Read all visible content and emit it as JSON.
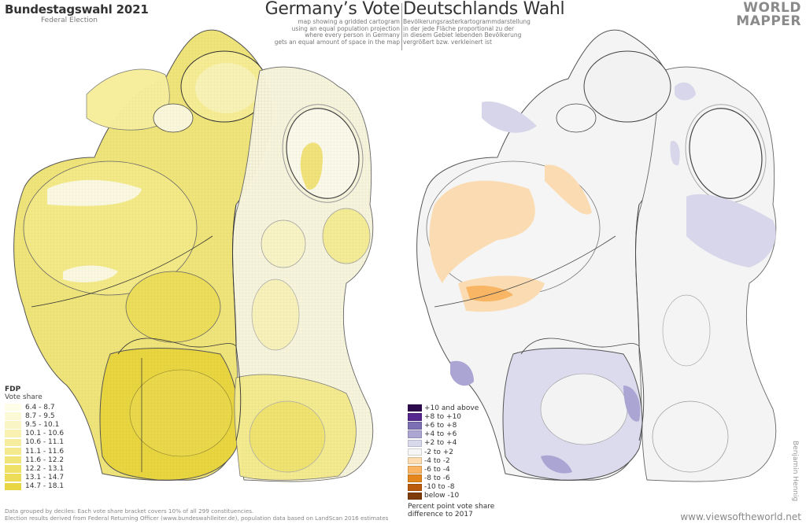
{
  "header": {
    "title": "Bundestagswahl 2021",
    "subtitle": "Federal Election",
    "title_en": "Germany’s Vote",
    "title_de": "Deutschlands Wahl",
    "description_en": [
      "map showing a gridded cartogram",
      "using an equal population projection",
      "where every person in Germany",
      "gets an equal amount of space in the map"
    ],
    "description_de": [
      "Bevölkerungsrasterkartogrammdarstellung",
      "in der jede Fläche proportional zu der",
      "in diesem Gebiet lebenden Bevölkerung",
      "vergrößert bzw. verkleinert ist"
    ],
    "logo_line1": "WORLD",
    "logo_line2": "MAPPER"
  },
  "left_map": {
    "party": "FDP",
    "measure": "Vote share",
    "legend": [
      {
        "label": "6.4 - 8.7",
        "color": "#fefde8"
      },
      {
        "label": "8.7 - 9.5",
        "color": "#fcf9d6"
      },
      {
        "label": "9.5 - 10.1",
        "color": "#faf5c4"
      },
      {
        "label": "10.1 - 10.6",
        "color": "#f8f1b2"
      },
      {
        "label": "10.6 - 11.1",
        "color": "#f6ed9e"
      },
      {
        "label": "11.1 - 11.6",
        "color": "#f4e98c"
      },
      {
        "label": "11.6 - 12.2",
        "color": "#f1e57a"
      },
      {
        "label": "12.2 - 13.1",
        "color": "#efe168"
      },
      {
        "label": "13.1 - 14.7",
        "color": "#ecdc58"
      },
      {
        "label": "14.7 - 18.1",
        "color": "#e9d645"
      }
    ]
  },
  "right_map": {
    "legend": [
      {
        "label": "+10 and above",
        "color": "#2d0a4e"
      },
      {
        "label": "+8 to +10",
        "color": "#55278f"
      },
      {
        "label": "+6 to +8",
        "color": "#7d6fb3"
      },
      {
        "label": "+4 to +6",
        "color": "#aba6d2"
      },
      {
        "label": "+2 to +4",
        "color": "#d9d9ec"
      },
      {
        "label": "-2 to +2",
        "color": "#f6f6f6"
      },
      {
        "label": "-4 to -2",
        "color": "#fddcb0"
      },
      {
        "label": "-6 to -4",
        "color": "#fbb462"
      },
      {
        "label": "-8 to -6",
        "color": "#e5861c"
      },
      {
        "label": "-10 to -8",
        "color": "#b95a0c"
      },
      {
        "label": "below -10",
        "color": "#7f3b08"
      }
    ],
    "note_line1": "Percent point vote share",
    "note_line2": "difference to 2017"
  },
  "footer": {
    "line1": "Data grouped by deciles: Each vote share bracket covers 10% of all 299 constituencies.",
    "line2": "Election results derived from Federal Returning Officer (www.bundeswahlleiter.de), population data based on LandScan 2016 estimates",
    "website": "www.viewsoftheworld.net",
    "author": "Benjamin Hennig"
  }
}
